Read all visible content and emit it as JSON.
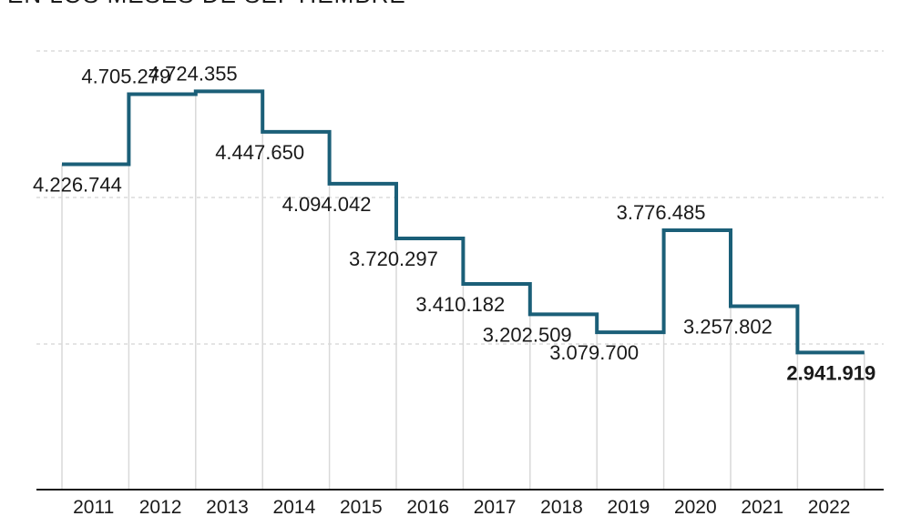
{
  "chart_data": {
    "type": "line",
    "subtitle": "EN LOS MESES DE SEPTIEMBRE",
    "categories": [
      "2011",
      "2012",
      "2013",
      "2014",
      "2015",
      "2016",
      "2017",
      "2018",
      "2019",
      "2020",
      "2021",
      "2022"
    ],
    "series": [
      {
        "values": [
          4226744,
          4705279,
          4724355,
          4447650,
          4094042,
          3720297,
          3410182,
          3202509,
          3079700,
          3776485,
          3257802,
          2941919
        ],
        "labels": [
          "4.226.744",
          "4.705.279",
          "4.724.355",
          "4.447.650",
          "4.094.042",
          "3.720.297",
          "3.410.182",
          "3.202.509",
          "3.079.700",
          "3.776.485",
          "3.257.802",
          "2.941.919"
        ]
      }
    ],
    "highlight_index": 11,
    "line_style": "step",
    "ylim": [
      2000000,
      5000000
    ],
    "gridlines": [
      3000000,
      4000000,
      5000000
    ],
    "grid": true,
    "xlabel": "",
    "ylabel": "",
    "colors": {
      "line": "#1b5f78",
      "highlight": "#1b6b80",
      "text": "#1a1a1a",
      "grid": "#c8c8c8"
    }
  }
}
